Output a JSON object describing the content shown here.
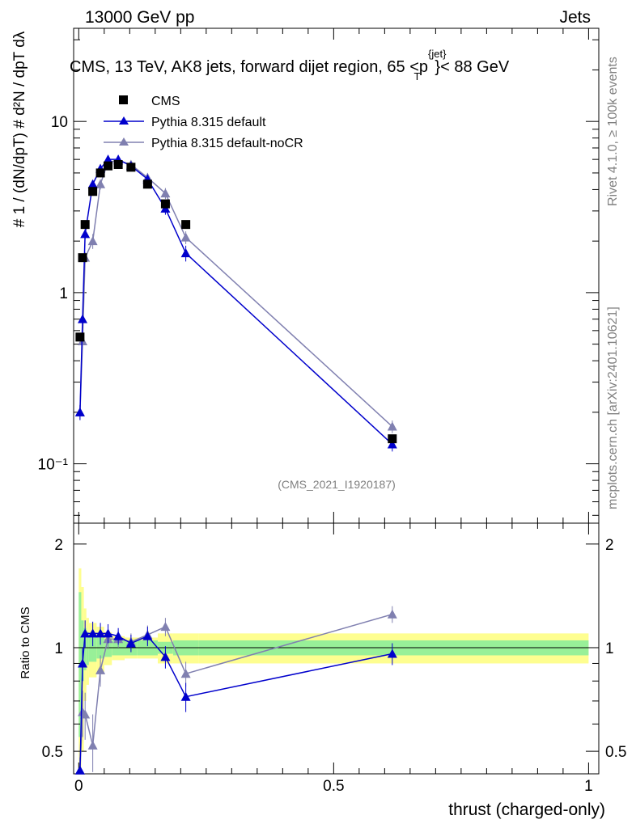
{
  "header": {
    "left": "13000 GeV pp",
    "right": "Jets"
  },
  "side_text": {
    "rivet": "Rivet 4.1.0, ≥ 100k events",
    "mcplots": "mcplots.cern.ch [arXiv:2401.10621]"
  },
  "chart_data": {
    "type": "scatter",
    "title": "CMS, 13 TeV, AK8 jets, forward dijet region, 65 <p",
    "title_sup": "{jet}",
    "title_sub": "T",
    "title_end": "}< 88 GeV",
    "analysis_tag": "(CMS_2021_I1920187)",
    "xlabel": "thrust (charged-only)",
    "ylabel_top": "# 1 / (dN/dpT) # d²N / dpT dλ",
    "ylabel_bottom": "Ratio to CMS",
    "xlim": [
      -0.01,
      1.02
    ],
    "ylim_top": [
      0.045,
      35
    ],
    "ylim_bottom": [
      0.43,
      2.3
    ],
    "x_ticks": [
      {
        "value": 0,
        "label": "0"
      },
      {
        "value": 0.5,
        "label": "0.5"
      },
      {
        "value": 1,
        "label": "1"
      }
    ],
    "y_ticks_top": [
      {
        "value": 0.1,
        "label": "10⁻¹"
      },
      {
        "value": 1,
        "label": "1"
      },
      {
        "value": 10,
        "label": "10"
      }
    ],
    "y_ticks_bottom": [
      {
        "value": 0.5,
        "label": "0.5"
      },
      {
        "value": 1,
        "label": "1"
      },
      {
        "value": 2,
        "label": "2"
      }
    ],
    "legend": [
      {
        "name": "CMS",
        "color": "#000000",
        "marker": "square"
      },
      {
        "name": "Pythia 8.315 default",
        "color": "#0000cc",
        "marker": "triangle"
      },
      {
        "name": "Pythia 8.315 default-noCR",
        "color": "#8080b0",
        "marker": "triangle"
      }
    ],
    "series": [
      {
        "name": "CMS",
        "x": [
          0.0025,
          0.0075,
          0.0125,
          0.0275,
          0.0425,
          0.0575,
          0.0775,
          0.1025,
          0.135,
          0.17,
          0.21,
          0.615
        ],
        "y": [
          0.55,
          1.6,
          2.5,
          3.9,
          5.0,
          5.5,
          5.6,
          5.4,
          4.3,
          3.3,
          2.5,
          0.14
        ]
      },
      {
        "name": "Pythia 8.315 default",
        "x": [
          0.0025,
          0.0075,
          0.0125,
          0.0275,
          0.0425,
          0.0575,
          0.0775,
          0.1025,
          0.135,
          0.17,
          0.21,
          0.615
        ],
        "y": [
          0.2,
          0.7,
          2.2,
          4.3,
          5.3,
          6.0,
          6.0,
          5.5,
          4.6,
          3.1,
          1.7,
          0.13
        ],
        "err": [
          0.02,
          0.06,
          0.15,
          0.25,
          0.3,
          0.35,
          0.35,
          0.3,
          0.3,
          0.25,
          0.18,
          0.012
        ],
        "ratio": [
          0.4,
          0.9,
          1.1,
          1.1,
          1.1,
          1.1,
          1.08,
          1.03,
          1.08,
          0.94,
          0.72,
          0.96
        ],
        "ratio_err": [
          0.08,
          0.1,
          0.1,
          0.09,
          0.08,
          0.07,
          0.06,
          0.06,
          0.07,
          0.07,
          0.07,
          0.07
        ]
      },
      {
        "name": "Pythia 8.315 default-noCR",
        "x": [
          0.0025,
          0.0075,
          0.0125,
          0.0275,
          0.0425,
          0.0575,
          0.0775,
          0.1025,
          0.135,
          0.17,
          0.21,
          0.615
        ],
        "y": [
          0.2,
          0.52,
          1.6,
          2.0,
          4.3,
          5.8,
          5.9,
          5.6,
          4.7,
          3.8,
          2.1,
          0.165
        ],
        "err": [
          0.02,
          0.05,
          0.12,
          0.2,
          0.3,
          0.35,
          0.35,
          0.3,
          0.3,
          0.28,
          0.18,
          0.014
        ],
        "ratio": [
          0.36,
          0.65,
          0.64,
          0.52,
          0.86,
          1.06,
          1.06,
          1.04,
          1.09,
          1.15,
          0.84,
          1.25
        ],
        "ratio_err": [
          0.08,
          0.1,
          0.1,
          0.12,
          0.09,
          0.07,
          0.06,
          0.06,
          0.07,
          0.07,
          0.07,
          0.07
        ]
      }
    ],
    "bands": {
      "edges": [
        0,
        0.005,
        0.01,
        0.015,
        0.02,
        0.035,
        0.05,
        0.065,
        0.09,
        0.115,
        0.155,
        0.185,
        0.235,
        1.0
      ],
      "inner": [
        0.45,
        0.2,
        0.14,
        0.11,
        0.09,
        0.07,
        0.06,
        0.05,
        0.05,
        0.05,
        0.04,
        0.05,
        0.05
      ],
      "outer": [
        0.7,
        0.5,
        0.3,
        0.22,
        0.18,
        0.15,
        0.11,
        0.08,
        0.07,
        0.07,
        0.1,
        0.1,
        0.1
      ],
      "inner_color": "#98f098",
      "outer_color": "#fefe90"
    }
  }
}
